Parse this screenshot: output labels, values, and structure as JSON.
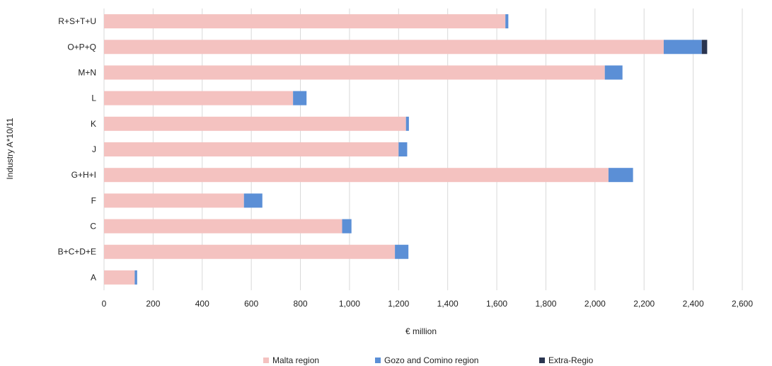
{
  "chart_data": {
    "type": "bar",
    "orientation": "horizontal",
    "stacked": true,
    "title": "",
    "xlabel": "€ million",
    "ylabel": "Industry A*10/11",
    "xlim": [
      0,
      2600
    ],
    "x_ticks": [
      0,
      200,
      400,
      600,
      800,
      1000,
      1200,
      1400,
      1600,
      1800,
      2000,
      2200,
      2400,
      2600
    ],
    "x_tick_labels": [
      "0",
      "200",
      "400",
      "600",
      "800",
      "1,000",
      "1,200",
      "1,400",
      "1,600",
      "1,800",
      "2,000",
      "2,200",
      "2,400",
      "2,600"
    ],
    "grid": "vertical",
    "legend_position": "bottom",
    "categories": [
      "R+S+T+U",
      "O+P+Q",
      "M+N",
      "L",
      "K",
      "J",
      "G+H+I",
      "F",
      "C",
      "B+C+D+E",
      "A"
    ],
    "series": [
      {
        "name": "Malta region",
        "color": "#f4c2c0",
        "values": [
          1635,
          2280,
          2040,
          770,
          1230,
          1200,
          2055,
          570,
          970,
          1185,
          125
        ]
      },
      {
        "name": "Gozo and Comino region",
        "color": "#5b8fd6",
        "values": [
          12,
          155,
          72,
          55,
          12,
          35,
          100,
          75,
          38,
          55,
          10
        ]
      },
      {
        "name": "Extra-Regio",
        "color": "#2a3550",
        "values": [
          0,
          22,
          0,
          0,
          0,
          0,
          0,
          0,
          0,
          0,
          0
        ]
      }
    ]
  }
}
